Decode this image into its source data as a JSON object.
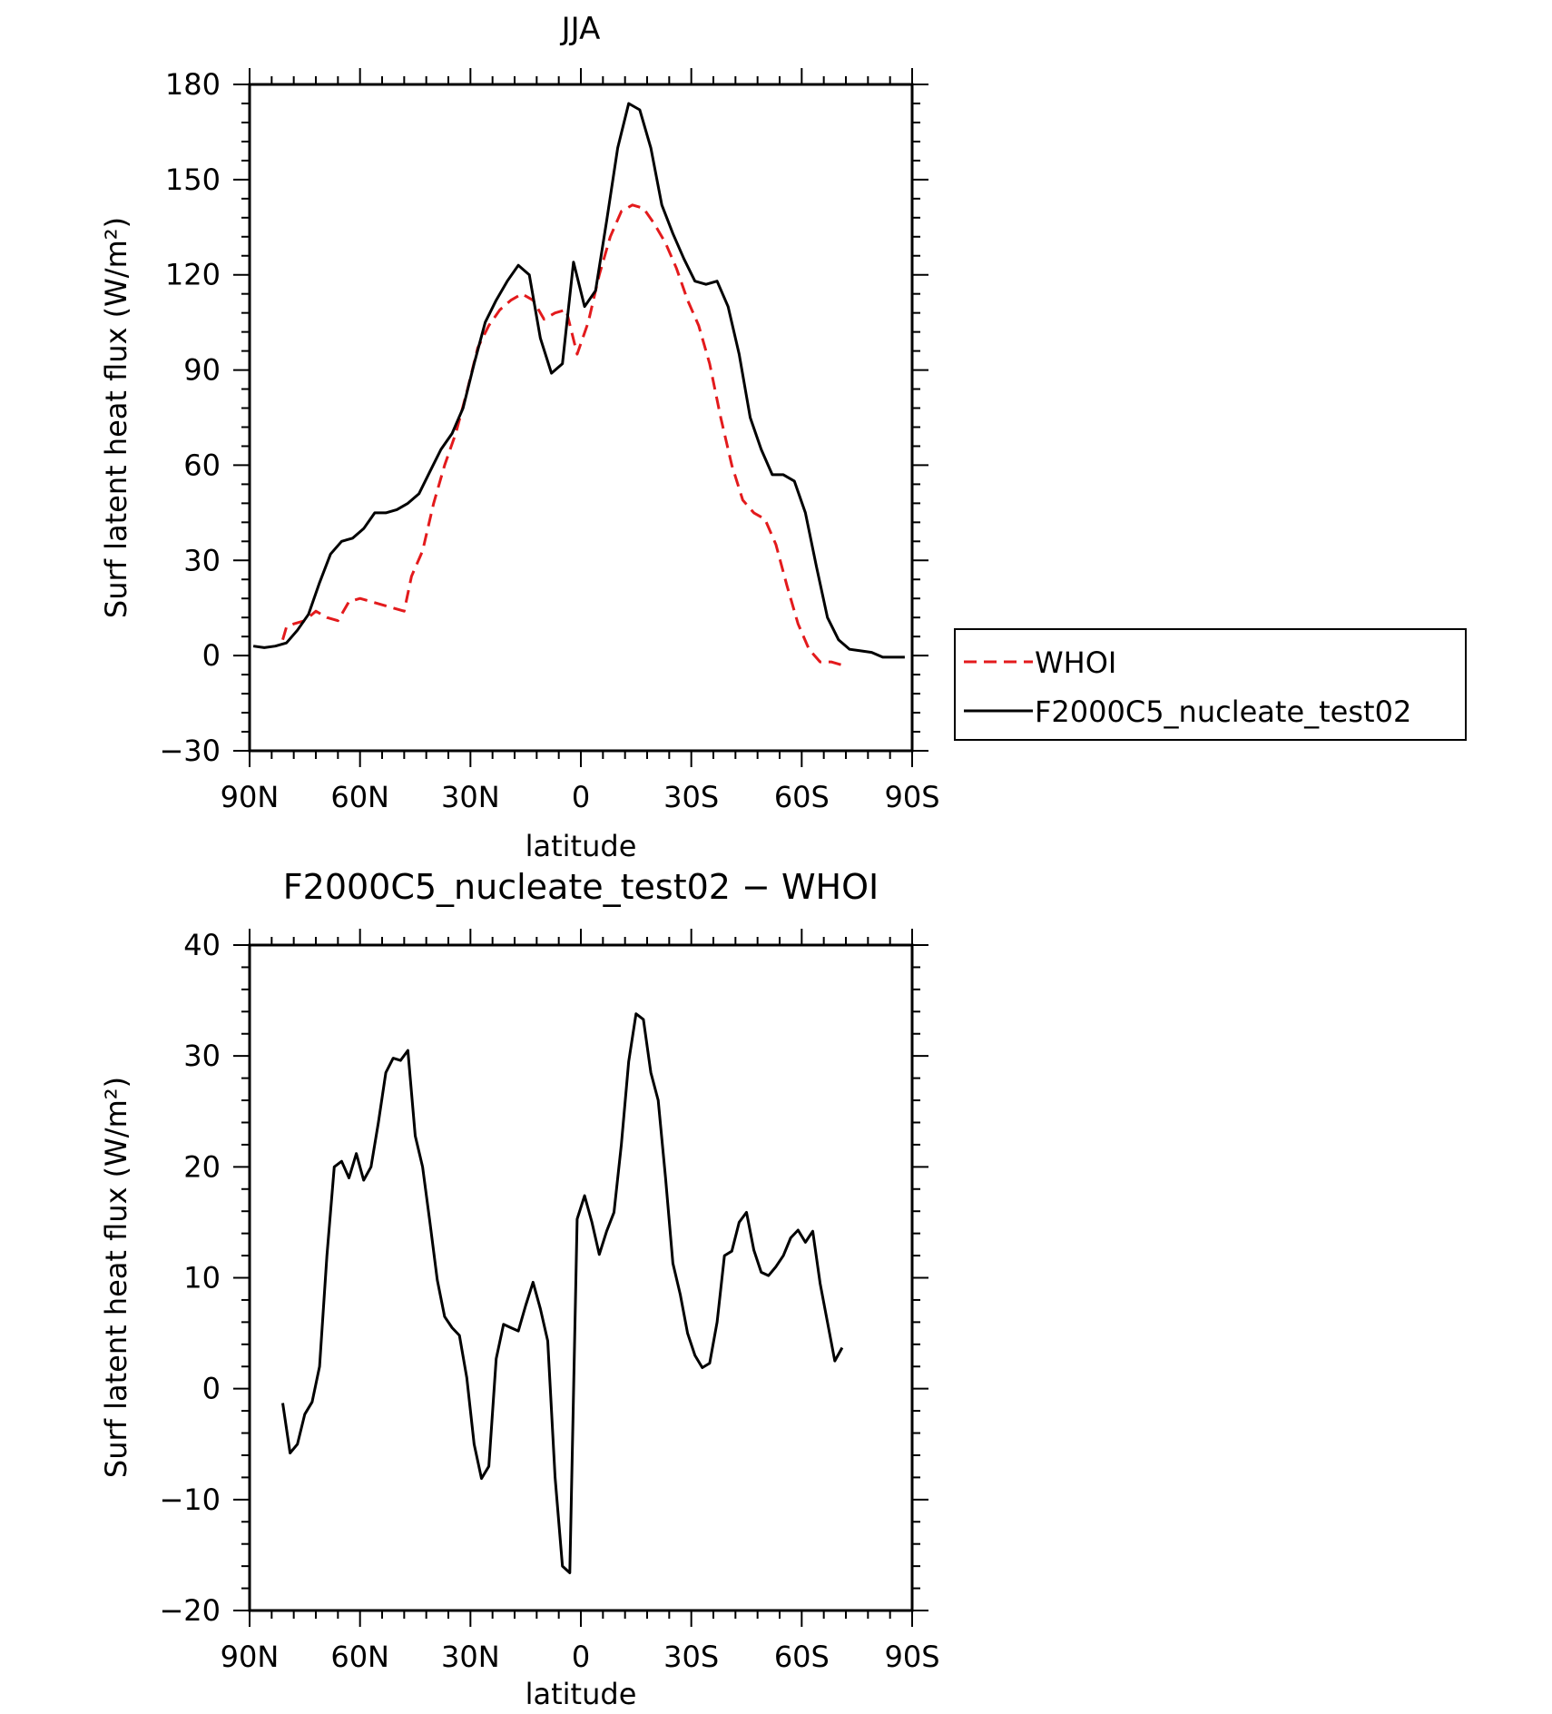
{
  "chart_data": [
    {
      "type": "line",
      "title": "JJA",
      "xlabel": "latitude",
      "ylabel": "Surf latent heat flux (W/m²)",
      "xlim": [
        -90,
        90
      ],
      "ylim": [
        -30,
        180
      ],
      "xtick_values": [
        -90,
        -60,
        -30,
        0,
        30,
        60,
        90
      ],
      "xtick_labels": [
        "90N",
        "60N",
        "30N",
        "0",
        "30S",
        "60S",
        "90S"
      ],
      "ytick_values": [
        -30,
        0,
        30,
        60,
        90,
        120,
        150,
        180
      ],
      "ytick_labels": [
        "−30",
        "0",
        "30",
        "60",
        "90",
        "120",
        "150",
        "180"
      ],
      "legend_position": "right",
      "series": [
        {
          "name": "WHOI",
          "color": "#e31a1c",
          "dash": "dashed",
          "x": [
            -81,
            -80,
            -78,
            -75,
            -72,
            -69,
            -66,
            -63,
            -60,
            -57,
            -54,
            -51,
            -48,
            -46,
            -43,
            -40,
            -37,
            -34,
            -31,
            -28,
            -25,
            -22,
            -19,
            -16,
            -13,
            -10,
            -7,
            -4,
            -1,
            2,
            5,
            8,
            11,
            14,
            17,
            20,
            23,
            26,
            29,
            32,
            35,
            38,
            41,
            44,
            47,
            50,
            53,
            56,
            59,
            62,
            65,
            68,
            71,
            72
          ],
          "y": [
            5,
            9,
            10,
            11,
            14,
            12,
            11,
            17,
            18,
            17,
            16,
            15,
            14,
            25,
            33,
            48,
            60,
            70,
            83,
            97,
            104,
            109,
            112,
            114,
            112,
            106,
            108,
            109,
            95,
            105,
            120,
            132,
            140,
            142,
            141,
            136,
            130,
            122,
            112,
            104,
            92,
            75,
            60,
            49,
            45,
            43,
            35,
            22,
            10,
            2,
            -2,
            -2,
            -3,
            -2
          ]
        },
        {
          "name": "F2000C5_nucleate_test02",
          "color": "#000000",
          "dash": "solid",
          "x": [
            -89,
            -86,
            -83,
            -80,
            -77,
            -74,
            -71,
            -68,
            -65,
            -62,
            -59,
            -56,
            -53,
            -50,
            -47,
            -44,
            -41,
            -38,
            -35,
            -32,
            -29,
            -26,
            -23,
            -20,
            -17,
            -14,
            -11,
            -8,
            -5,
            -2,
            1,
            4,
            7,
            10,
            13,
            16,
            19,
            22,
            25,
            28,
            31,
            34,
            37,
            40,
            43,
            46,
            49,
            52,
            55,
            58,
            61,
            64,
            67,
            70,
            73,
            76,
            79,
            82,
            85,
            88
          ],
          "y": [
            3,
            2.5,
            3,
            4,
            8,
            13,
            23,
            32,
            36,
            37,
            40,
            45,
            45,
            46,
            48,
            51,
            58,
            65,
            70,
            78,
            92,
            105,
            112,
            118,
            123,
            120,
            100,
            89,
            92,
            124,
            110,
            115,
            137,
            160,
            174,
            172,
            160,
            142,
            133,
            125,
            118,
            117,
            118,
            110,
            95,
            75,
            65,
            57,
            57,
            55,
            45,
            28,
            12,
            5,
            2,
            1.5,
            1,
            -0.5,
            -0.5,
            -0.5
          ]
        }
      ]
    },
    {
      "type": "line",
      "title": "F2000C5_nucleate_test02 − WHOI",
      "xlabel": "latitude",
      "ylabel": "Surf latent heat flux (W/m²)",
      "xlim": [
        -90,
        90
      ],
      "ylim": [
        -20,
        40
      ],
      "xtick_values": [
        -90,
        -60,
        -30,
        0,
        30,
        60,
        90
      ],
      "xtick_labels": [
        "90N",
        "60N",
        "30N",
        "0",
        "30S",
        "60S",
        "90S"
      ],
      "ytick_values": [
        -20,
        -10,
        0,
        10,
        20,
        30,
        40
      ],
      "ytick_labels": [
        "−20",
        "−10",
        "0",
        "10",
        "20",
        "30",
        "40"
      ],
      "series": [
        {
          "color": "#000000",
          "dash": "solid",
          "x": [
            -81,
            -79,
            -77,
            -75,
            -73,
            -71,
            -69,
            -67,
            -65,
            -63,
            -61,
            -59,
            -57,
            -55,
            -53,
            -51,
            -49,
            -47,
            -45,
            -43,
            -41,
            -39,
            -37,
            -35,
            -33,
            -31,
            -29,
            -27,
            -25,
            -23,
            -21,
            -19,
            -17,
            -15,
            -13,
            -11,
            -9,
            -7,
            -5,
            -3,
            -1,
            1,
            3,
            5,
            7,
            9,
            11,
            13,
            15,
            17,
            19,
            21,
            23,
            25,
            27,
            29,
            31,
            33,
            35,
            37,
            39,
            41,
            43,
            45,
            47,
            49,
            51,
            53,
            55,
            57,
            59,
            61,
            63,
            65,
            67,
            69,
            71
          ],
          "y": [
            -1.3,
            -5.8,
            -5.0,
            -2.3,
            -1.2,
            2.0,
            12.0,
            20.0,
            20.5,
            19.0,
            21.2,
            18.8,
            20.0,
            24.0,
            28.5,
            29.8,
            29.6,
            30.5,
            22.8,
            20.0,
            15.0,
            9.8,
            6.5,
            5.5,
            4.8,
            1.0,
            -5.0,
            -8.1,
            -7.0,
            2.7,
            5.8,
            5.5,
            5.2,
            7.5,
            9.6,
            7.2,
            4.3,
            -8.0,
            -16.0,
            -16.6,
            15.3,
            17.4,
            15.0,
            12.1,
            14.2,
            15.9,
            22.0,
            29.5,
            33.8,
            33.3,
            28.5,
            26.0,
            19.0,
            11.3,
            8.5,
            5.0,
            3.0,
            1.9,
            2.3,
            6.0,
            12.0,
            12.4,
            15.0,
            15.9,
            12.5,
            10.5,
            10.2,
            11.0,
            12.0,
            13.6,
            14.3,
            13.2,
            14.2,
            9.5,
            6.0,
            2.5,
            3.7
          ]
        }
      ]
    }
  ]
}
